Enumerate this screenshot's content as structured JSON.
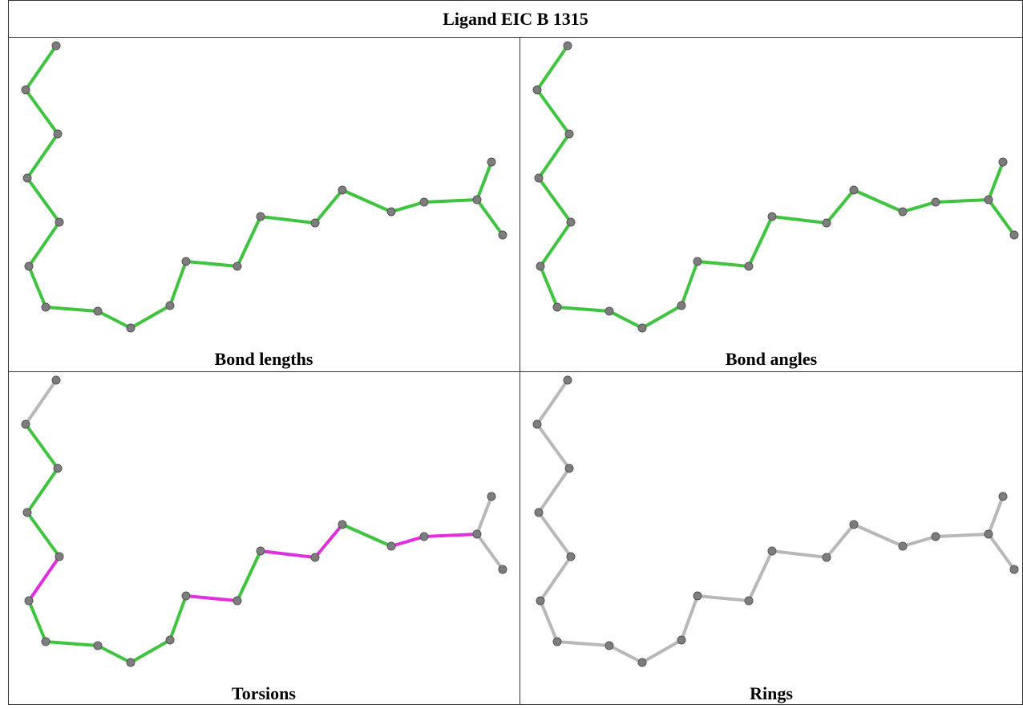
{
  "header": {
    "title": "Ligand EIC B 1315"
  },
  "panels": [
    {
      "label": "Bond lengths"
    },
    {
      "label": "Bond angles"
    },
    {
      "label": "Torsions"
    },
    {
      "label": "Rings"
    }
  ]
}
